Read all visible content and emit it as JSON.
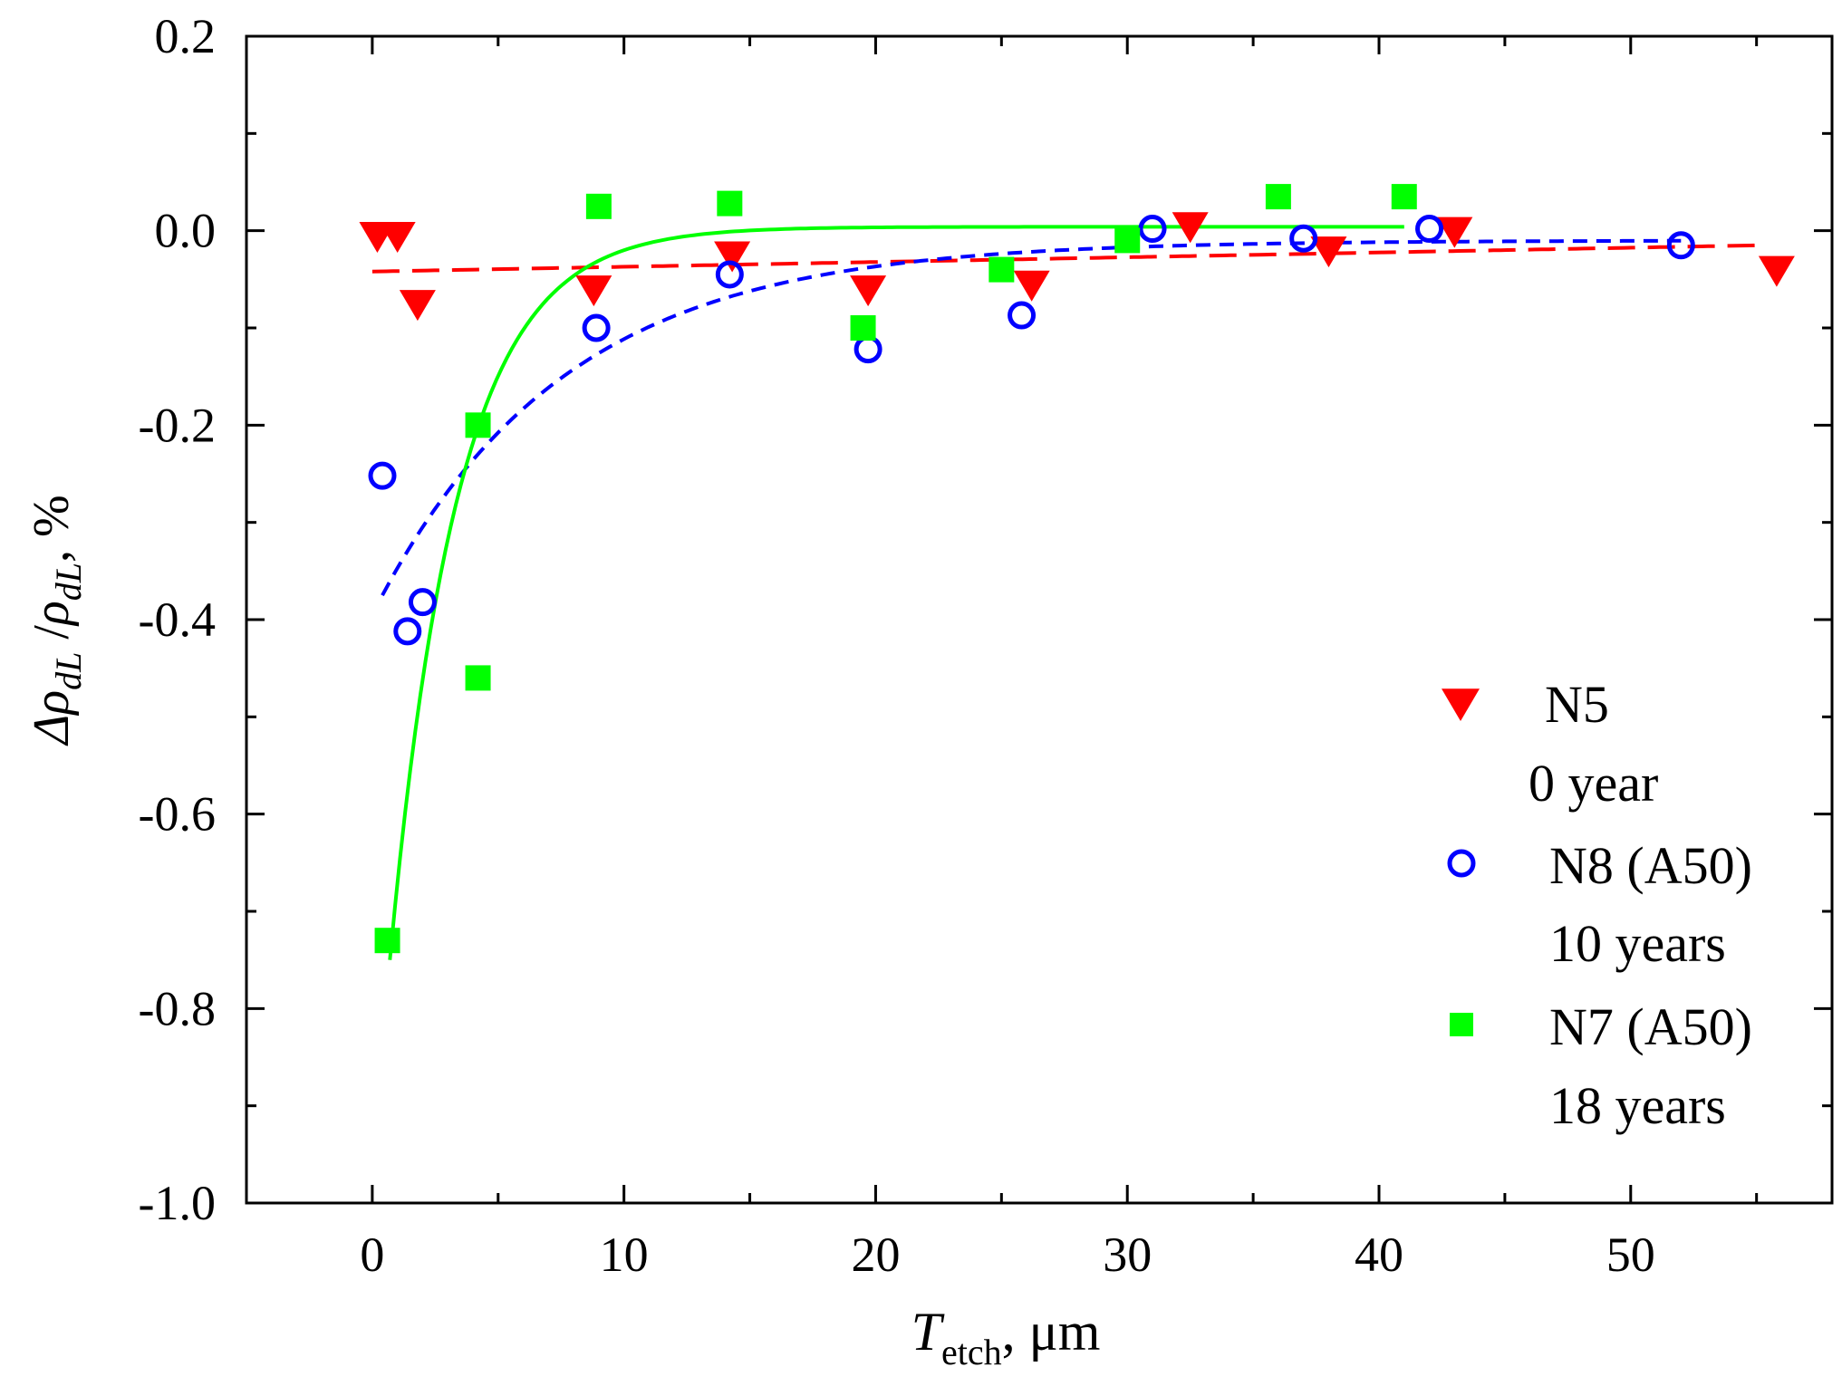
{
  "chart_data": {
    "type": "scatter",
    "title": "",
    "xlabel": {
      "main": "T",
      "sub": "etch",
      "unit": ", μm"
    },
    "ylabel": {
      "d": "Δρ",
      "sub1": "dL",
      "slash": " /",
      "rho": "ρ",
      "sub2": "dL",
      "unit": ", %"
    },
    "xlim": [
      -5,
      58
    ],
    "ylim": [
      -1.0,
      0.2
    ],
    "xticks": [
      0,
      10,
      20,
      30,
      40,
      50
    ],
    "yticks": [
      0.2,
      0.0,
      -0.2,
      -0.4,
      -0.6,
      -0.8,
      -1.0
    ],
    "xtick_labels": [
      "0",
      "10",
      "20",
      "30",
      "40",
      "50"
    ],
    "ytick_labels": [
      "0.2",
      "0.0",
      "-0.2",
      "-0.4",
      "-0.6",
      "-0.8",
      "-1.0"
    ],
    "legend_position": "bottom-right",
    "colors": {
      "N5": "#ff0000",
      "N8": "#0000ff",
      "N7": "#00ff00",
      "axis": "#000000"
    },
    "series": [
      {
        "name": "N5",
        "sublabel": "0 year",
        "marker": "triangle-down",
        "color": "#ff0000",
        "x": [
          0.2,
          1.0,
          1.8,
          8.8,
          14.3,
          19.7,
          26.2,
          32.5,
          38.0,
          43.0,
          55.8
        ],
        "y": [
          -0.005,
          -0.005,
          -0.075,
          -0.06,
          -0.025,
          -0.06,
          -0.055,
          0.005,
          -0.02,
          0.0,
          -0.04
        ],
        "fit": {
          "style": "dashed-long",
          "kind": "linear",
          "x_range": [
            0,
            55
          ],
          "a": -0.042,
          "b": 0.00049
        }
      },
      {
        "name": "N8 (A50)",
        "sublabel": "10 years",
        "marker": "circle-open",
        "color": "#0000ff",
        "x": [
          0.4,
          1.4,
          2.0,
          8.9,
          14.2,
          19.7,
          25.8,
          31.0,
          37.0,
          42.0,
          52.0
        ],
        "y": [
          -0.252,
          -0.412,
          -0.382,
          -0.1,
          -0.045,
          -0.122,
          -0.087,
          0.002,
          -0.008,
          0.002,
          -0.015
        ],
        "fit": {
          "style": "dashed-short",
          "kind": "exp",
          "x_range": [
            0.4,
            52
          ],
          "y0": -0.01,
          "A": -0.365,
          "t": 7.5,
          "x0": 0.4
        }
      },
      {
        "name": "N7 (A50)",
        "sublabel": "18 years",
        "marker": "square",
        "color": "#00ff00",
        "x": [
          0.6,
          4.2,
          4.2,
          9.0,
          14.2,
          19.5,
          25.0,
          30.0,
          36.0,
          41.0
        ],
        "y": [
          -0.73,
          -0.2,
          -0.46,
          0.025,
          0.028,
          -0.1,
          -0.04,
          -0.01,
          0.035,
          0.035
        ],
        "fit": {
          "style": "solid",
          "kind": "exp",
          "x_range": [
            0.7,
            41
          ],
          "y0": 0.004,
          "A": -0.754,
          "t": 2.7,
          "x0": 0.7
        }
      }
    ]
  }
}
